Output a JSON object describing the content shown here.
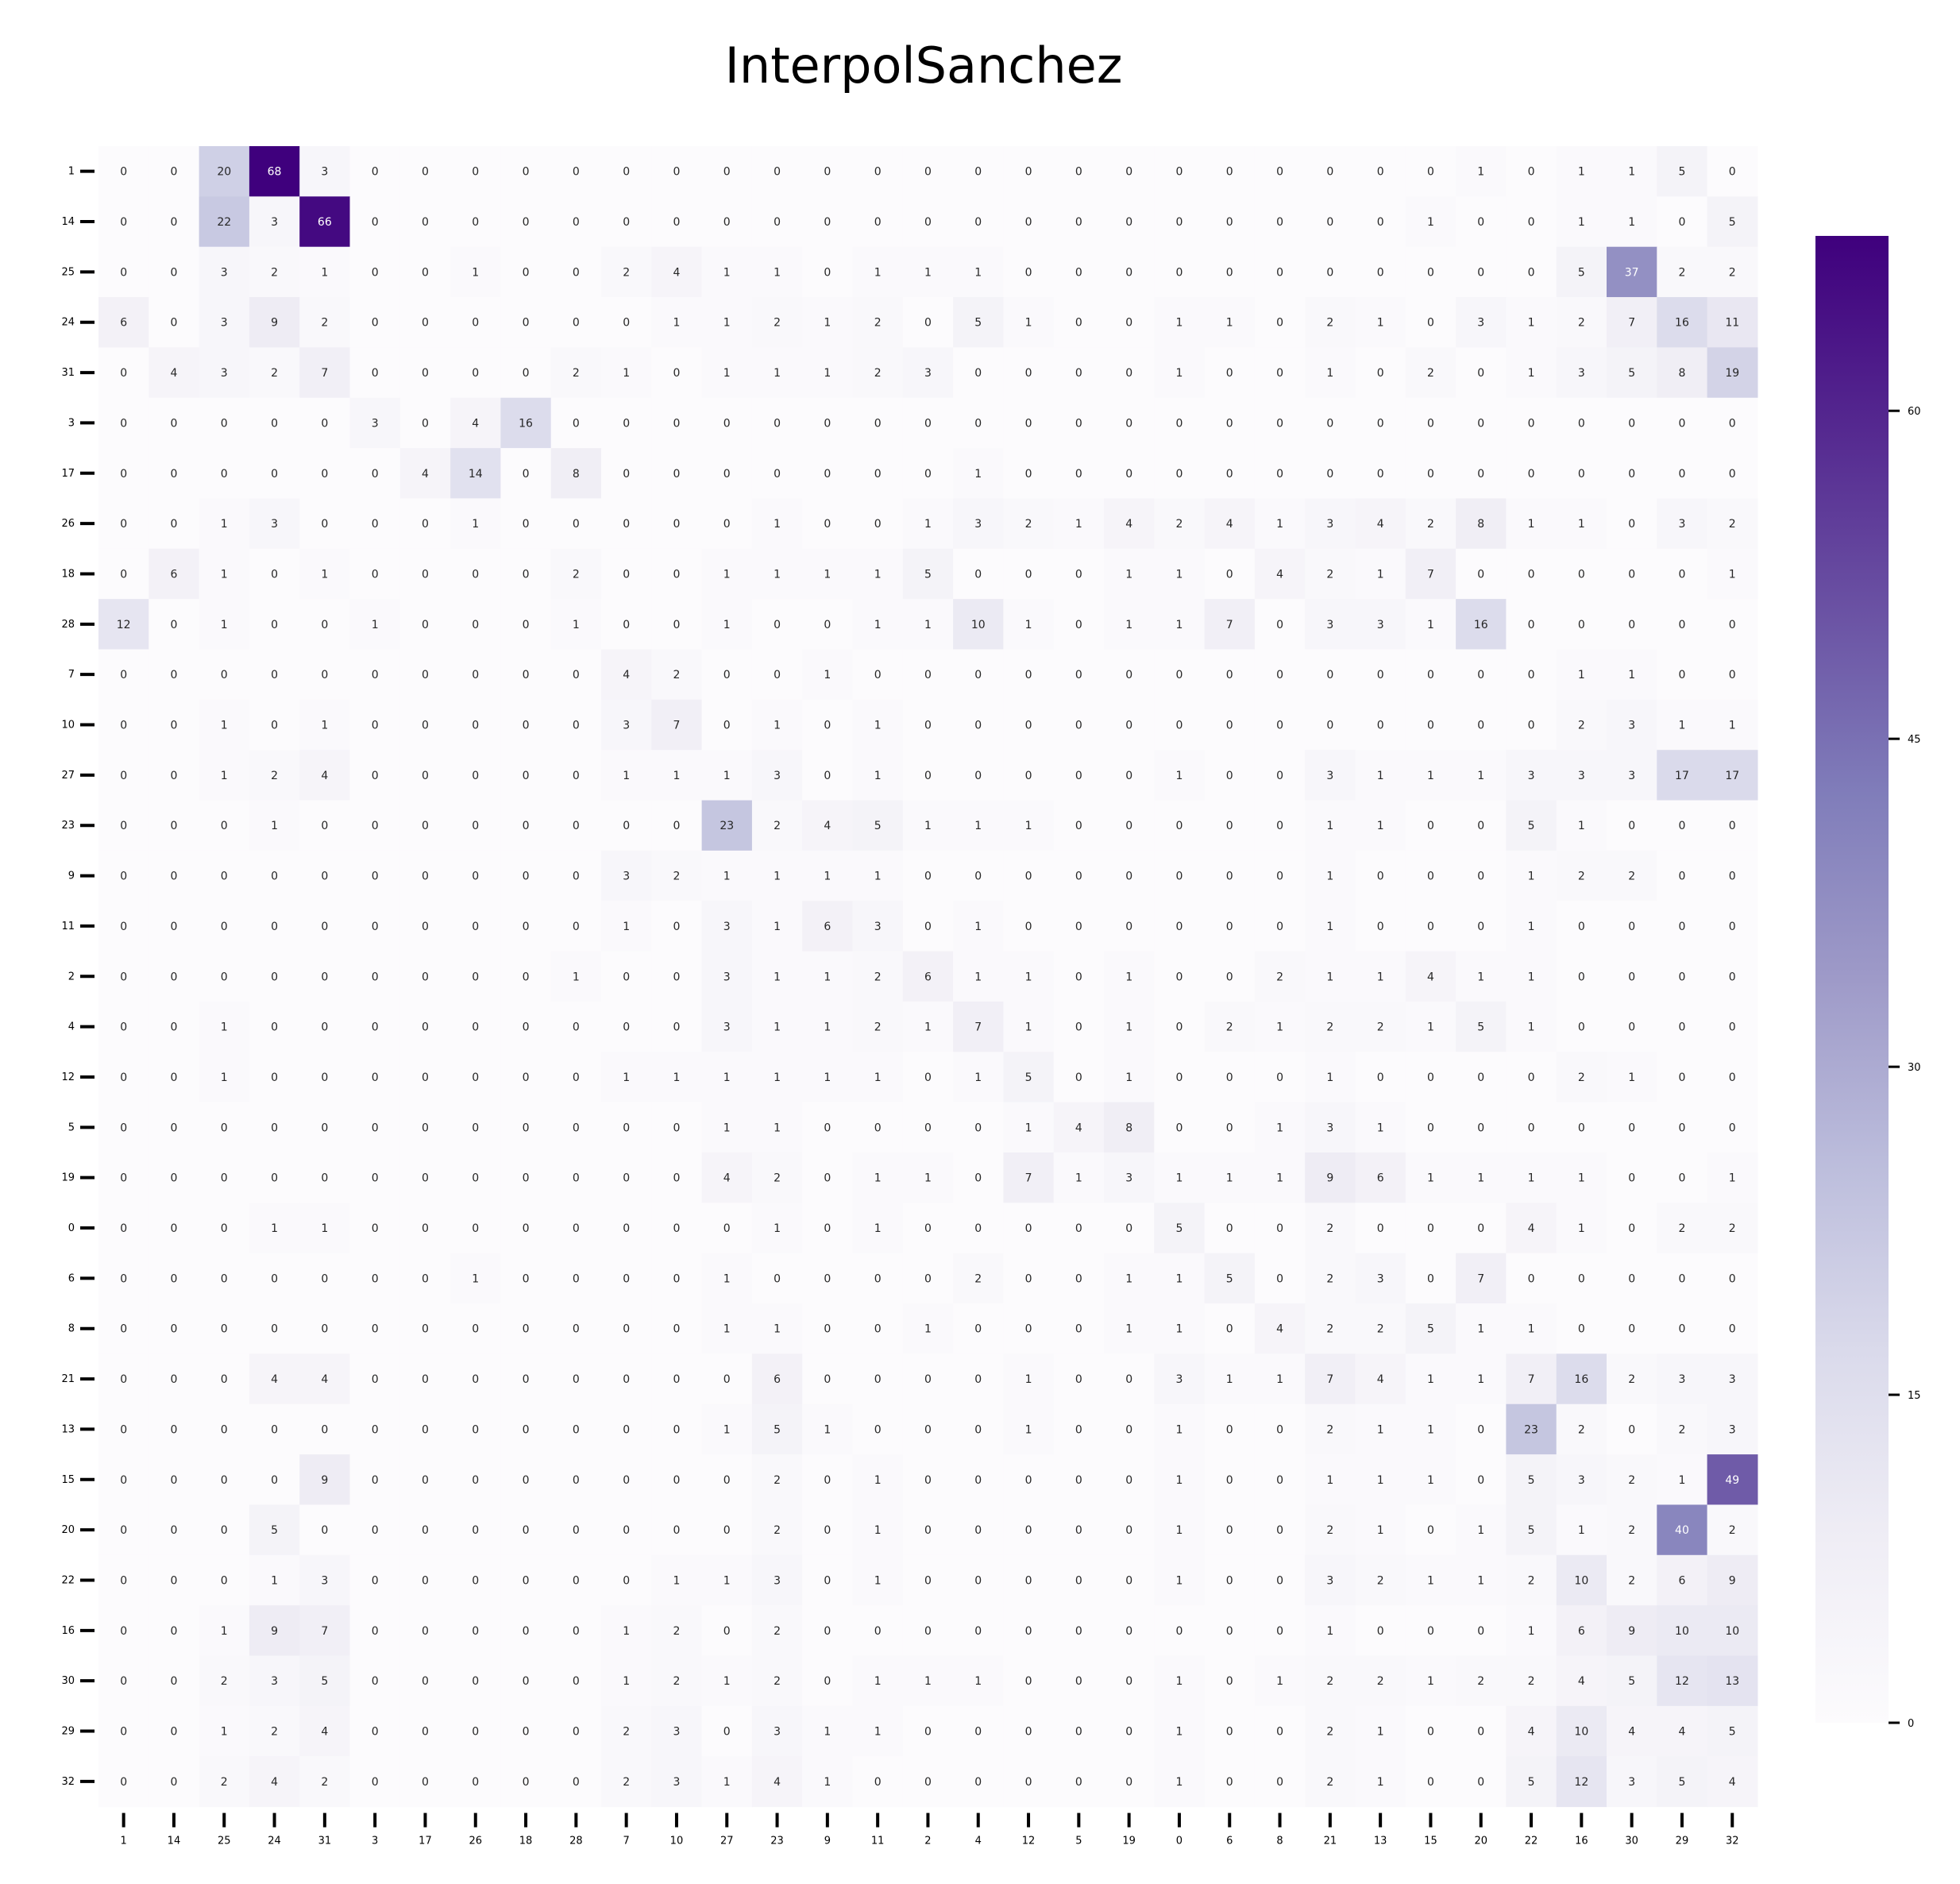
{
  "chart_data": {
    "type": "heatmap",
    "title": "InterpolSanchez",
    "xlabel": "",
    "ylabel": "",
    "colormap": "Purples",
    "colorscale": {
      "min": 0,
      "max": 68,
      "low_color": "#fcfbfd",
      "high_color": "#3f007d"
    },
    "colorbar_ticks": [
      "0",
      "15",
      "30",
      "45",
      "60"
    ],
    "grid": false,
    "legend": "colorbar-right",
    "row_labels": [
      "1",
      "14",
      "25",
      "24",
      "31",
      "3",
      "17",
      "26",
      "18",
      "28",
      "7",
      "10",
      "27",
      "23",
      "9",
      "11",
      "2",
      "4",
      "12",
      "5",
      "19",
      "0",
      "6",
      "8",
      "21",
      "13",
      "15",
      "20",
      "22",
      "16",
      "30",
      "29",
      "32"
    ],
    "col_labels": [
      "1",
      "14",
      "25",
      "24",
      "31",
      "3",
      "17",
      "26",
      "18",
      "28",
      "7",
      "10",
      "27",
      "23",
      "9",
      "11",
      "2",
      "4",
      "12",
      "5",
      "19",
      "0",
      "6",
      "8",
      "21",
      "13",
      "15",
      "20",
      "22",
      "16",
      "30",
      "29",
      "32"
    ],
    "values": [
      [
        0,
        0,
        20,
        68,
        3,
        0,
        0,
        0,
        0,
        0,
        0,
        0,
        0,
        0,
        0,
        0,
        0,
        0,
        0,
        0,
        0,
        0,
        0,
        0,
        0,
        0,
        0,
        1,
        0,
        1,
        1,
        5,
        0
      ],
      [
        0,
        0,
        22,
        3,
        66,
        0,
        0,
        0,
        0,
        0,
        0,
        0,
        0,
        0,
        0,
        0,
        0,
        0,
        0,
        0,
        0,
        0,
        0,
        0,
        0,
        0,
        1,
        0,
        0,
        1,
        1,
        0,
        5
      ],
      [
        0,
        0,
        3,
        2,
        1,
        0,
        0,
        1,
        0,
        0,
        2,
        4,
        1,
        1,
        0,
        1,
        1,
        1,
        0,
        0,
        0,
        0,
        0,
        0,
        0,
        0,
        0,
        0,
        0,
        5,
        37,
        2,
        2
      ],
      [
        6,
        0,
        3,
        9,
        2,
        0,
        0,
        0,
        0,
        0,
        0,
        1,
        1,
        2,
        1,
        2,
        0,
        5,
        1,
        0,
        0,
        1,
        1,
        0,
        2,
        1,
        0,
        3,
        1,
        2,
        7,
        16,
        11
      ],
      [
        0,
        4,
        3,
        2,
        7,
        0,
        0,
        0,
        0,
        2,
        1,
        0,
        1,
        1,
        1,
        2,
        3,
        0,
        0,
        0,
        0,
        1,
        0,
        0,
        1,
        0,
        2,
        0,
        1,
        3,
        5,
        8,
        19
      ],
      [
        0,
        0,
        0,
        0,
        0,
        3,
        0,
        4,
        16,
        0,
        0,
        0,
        0,
        0,
        0,
        0,
        0,
        0,
        0,
        0,
        0,
        0,
        0,
        0,
        0,
        0,
        0,
        0,
        0,
        0,
        0,
        0,
        0
      ],
      [
        0,
        0,
        0,
        0,
        0,
        0,
        4,
        14,
        0,
        8,
        0,
        0,
        0,
        0,
        0,
        0,
        0,
        1,
        0,
        0,
        0,
        0,
        0,
        0,
        0,
        0,
        0,
        0,
        0,
        0,
        0,
        0,
        0
      ],
      [
        0,
        0,
        1,
        3,
        0,
        0,
        0,
        1,
        0,
        0,
        0,
        0,
        0,
        1,
        0,
        0,
        1,
        3,
        2,
        1,
        4,
        2,
        4,
        1,
        3,
        4,
        2,
        8,
        1,
        1,
        0,
        3,
        2
      ],
      [
        0,
        6,
        1,
        0,
        1,
        0,
        0,
        0,
        0,
        2,
        0,
        0,
        1,
        1,
        1,
        1,
        5,
        0,
        0,
        0,
        1,
        1,
        0,
        4,
        2,
        1,
        7,
        0,
        0,
        0,
        0,
        0,
        1
      ],
      [
        12,
        0,
        1,
        0,
        0,
        1,
        0,
        0,
        0,
        1,
        0,
        0,
        1,
        0,
        0,
        1,
        1,
        10,
        1,
        0,
        1,
        1,
        7,
        0,
        3,
        3,
        1,
        16,
        0,
        0,
        0,
        0,
        0
      ],
      [
        0,
        0,
        0,
        0,
        0,
        0,
        0,
        0,
        0,
        0,
        4,
        2,
        0,
        0,
        1,
        0,
        0,
        0,
        0,
        0,
        0,
        0,
        0,
        0,
        0,
        0,
        0,
        0,
        0,
        1,
        1,
        0,
        0
      ],
      [
        0,
        0,
        1,
        0,
        1,
        0,
        0,
        0,
        0,
        0,
        3,
        7,
        0,
        1,
        0,
        1,
        0,
        0,
        0,
        0,
        0,
        0,
        0,
        0,
        0,
        0,
        0,
        0,
        0,
        2,
        3,
        1,
        1
      ],
      [
        0,
        0,
        1,
        2,
        4,
        0,
        0,
        0,
        0,
        0,
        1,
        1,
        1,
        3,
        0,
        1,
        0,
        0,
        0,
        0,
        0,
        1,
        0,
        0,
        3,
        1,
        1,
        1,
        3,
        3,
        3,
        17,
        17
      ],
      [
        0,
        0,
        0,
        1,
        0,
        0,
        0,
        0,
        0,
        0,
        0,
        0,
        23,
        2,
        4,
        5,
        1,
        1,
        1,
        0,
        0,
        0,
        0,
        0,
        1,
        1,
        0,
        0,
        5,
        1,
        0,
        0,
        0
      ],
      [
        0,
        0,
        0,
        0,
        0,
        0,
        0,
        0,
        0,
        0,
        3,
        2,
        1,
        1,
        1,
        1,
        0,
        0,
        0,
        0,
        0,
        0,
        0,
        0,
        1,
        0,
        0,
        0,
        1,
        2,
        2,
        0,
        0
      ],
      [
        0,
        0,
        0,
        0,
        0,
        0,
        0,
        0,
        0,
        0,
        1,
        0,
        3,
        1,
        6,
        3,
        0,
        1,
        0,
        0,
        0,
        0,
        0,
        0,
        1,
        0,
        0,
        0,
        1,
        0,
        0,
        0,
        0
      ],
      [
        0,
        0,
        0,
        0,
        0,
        0,
        0,
        0,
        0,
        1,
        0,
        0,
        3,
        1,
        1,
        2,
        6,
        1,
        1,
        0,
        1,
        0,
        0,
        2,
        1,
        1,
        4,
        1,
        1,
        0,
        0,
        0,
        0
      ],
      [
        0,
        0,
        1,
        0,
        0,
        0,
        0,
        0,
        0,
        0,
        0,
        0,
        3,
        1,
        1,
        2,
        1,
        7,
        1,
        0,
        1,
        0,
        2,
        1,
        2,
        2,
        1,
        5,
        1,
        0,
        0,
        0,
        0
      ],
      [
        0,
        0,
        1,
        0,
        0,
        0,
        0,
        0,
        0,
        0,
        1,
        1,
        1,
        1,
        1,
        1,
        0,
        1,
        5,
        0,
        1,
        0,
        0,
        0,
        1,
        0,
        0,
        0,
        0,
        2,
        1,
        0,
        0
      ],
      [
        0,
        0,
        0,
        0,
        0,
        0,
        0,
        0,
        0,
        0,
        0,
        0,
        1,
        1,
        0,
        0,
        0,
        0,
        1,
        4,
        8,
        0,
        0,
        1,
        3,
        1,
        0,
        0,
        0,
        0,
        0,
        0,
        0
      ],
      [
        0,
        0,
        0,
        0,
        0,
        0,
        0,
        0,
        0,
        0,
        0,
        0,
        4,
        2,
        0,
        1,
        1,
        0,
        7,
        1,
        3,
        1,
        1,
        1,
        9,
        6,
        1,
        1,
        1,
        1,
        0,
        0,
        1
      ],
      [
        0,
        0,
        0,
        1,
        1,
        0,
        0,
        0,
        0,
        0,
        0,
        0,
        0,
        1,
        0,
        1,
        0,
        0,
        0,
        0,
        0,
        5,
        0,
        0,
        2,
        0,
        0,
        0,
        4,
        1,
        0,
        2,
        2
      ],
      [
        0,
        0,
        0,
        0,
        0,
        0,
        0,
        1,
        0,
        0,
        0,
        0,
        1,
        0,
        0,
        0,
        0,
        2,
        0,
        0,
        1,
        1,
        5,
        0,
        2,
        3,
        0,
        7,
        0,
        0,
        0,
        0,
        0
      ],
      [
        0,
        0,
        0,
        0,
        0,
        0,
        0,
        0,
        0,
        0,
        0,
        0,
        1,
        1,
        0,
        0,
        1,
        0,
        0,
        0,
        1,
        1,
        0,
        4,
        2,
        2,
        5,
        1,
        1,
        0,
        0,
        0,
        0
      ],
      [
        0,
        0,
        0,
        4,
        4,
        0,
        0,
        0,
        0,
        0,
        0,
        0,
        0,
        6,
        0,
        0,
        0,
        0,
        1,
        0,
        0,
        3,
        1,
        1,
        7,
        4,
        1,
        1,
        7,
        16,
        2,
        3,
        3
      ],
      [
        0,
        0,
        0,
        0,
        0,
        0,
        0,
        0,
        0,
        0,
        0,
        0,
        1,
        5,
        1,
        0,
        0,
        0,
        1,
        0,
        0,
        1,
        0,
        0,
        2,
        1,
        1,
        0,
        23,
        2,
        0,
        2,
        3
      ],
      [
        0,
        0,
        0,
        0,
        9,
        0,
        0,
        0,
        0,
        0,
        0,
        0,
        0,
        2,
        0,
        1,
        0,
        0,
        0,
        0,
        0,
        1,
        0,
        0,
        1,
        1,
        1,
        0,
        5,
        3,
        2,
        1,
        49
      ],
      [
        0,
        0,
        0,
        5,
        0,
        0,
        0,
        0,
        0,
        0,
        0,
        0,
        0,
        2,
        0,
        1,
        0,
        0,
        0,
        0,
        0,
        1,
        0,
        0,
        2,
        1,
        0,
        1,
        5,
        1,
        2,
        40,
        2
      ],
      [
        0,
        0,
        0,
        1,
        3,
        0,
        0,
        0,
        0,
        0,
        0,
        1,
        1,
        3,
        0,
        1,
        0,
        0,
        0,
        0,
        0,
        1,
        0,
        0,
        3,
        2,
        1,
        1,
        2,
        10,
        2,
        6,
        9
      ],
      [
        0,
        0,
        1,
        9,
        7,
        0,
        0,
        0,
        0,
        0,
        1,
        2,
        0,
        2,
        0,
        0,
        0,
        0,
        0,
        0,
        0,
        0,
        0,
        0,
        1,
        0,
        0,
        0,
        1,
        6,
        9,
        10,
        10
      ],
      [
        0,
        0,
        2,
        3,
        5,
        0,
        0,
        0,
        0,
        0,
        1,
        2,
        1,
        2,
        0,
        1,
        1,
        1,
        0,
        0,
        0,
        1,
        0,
        1,
        2,
        2,
        1,
        2,
        2,
        4,
        5,
        12,
        13
      ],
      [
        0,
        0,
        1,
        2,
        4,
        0,
        0,
        0,
        0,
        0,
        2,
        3,
        0,
        3,
        1,
        1,
        0,
        0,
        0,
        0,
        0,
        1,
        0,
        0,
        2,
        1,
        0,
        0,
        4,
        10,
        4,
        4,
        5
      ],
      [
        0,
        0,
        2,
        4,
        2,
        0,
        0,
        0,
        0,
        0,
        2,
        3,
        1,
        4,
        1,
        0,
        0,
        0,
        0,
        0,
        0,
        1,
        0,
        0,
        2,
        1,
        0,
        0,
        5,
        12,
        3,
        5,
        4
      ]
    ]
  }
}
